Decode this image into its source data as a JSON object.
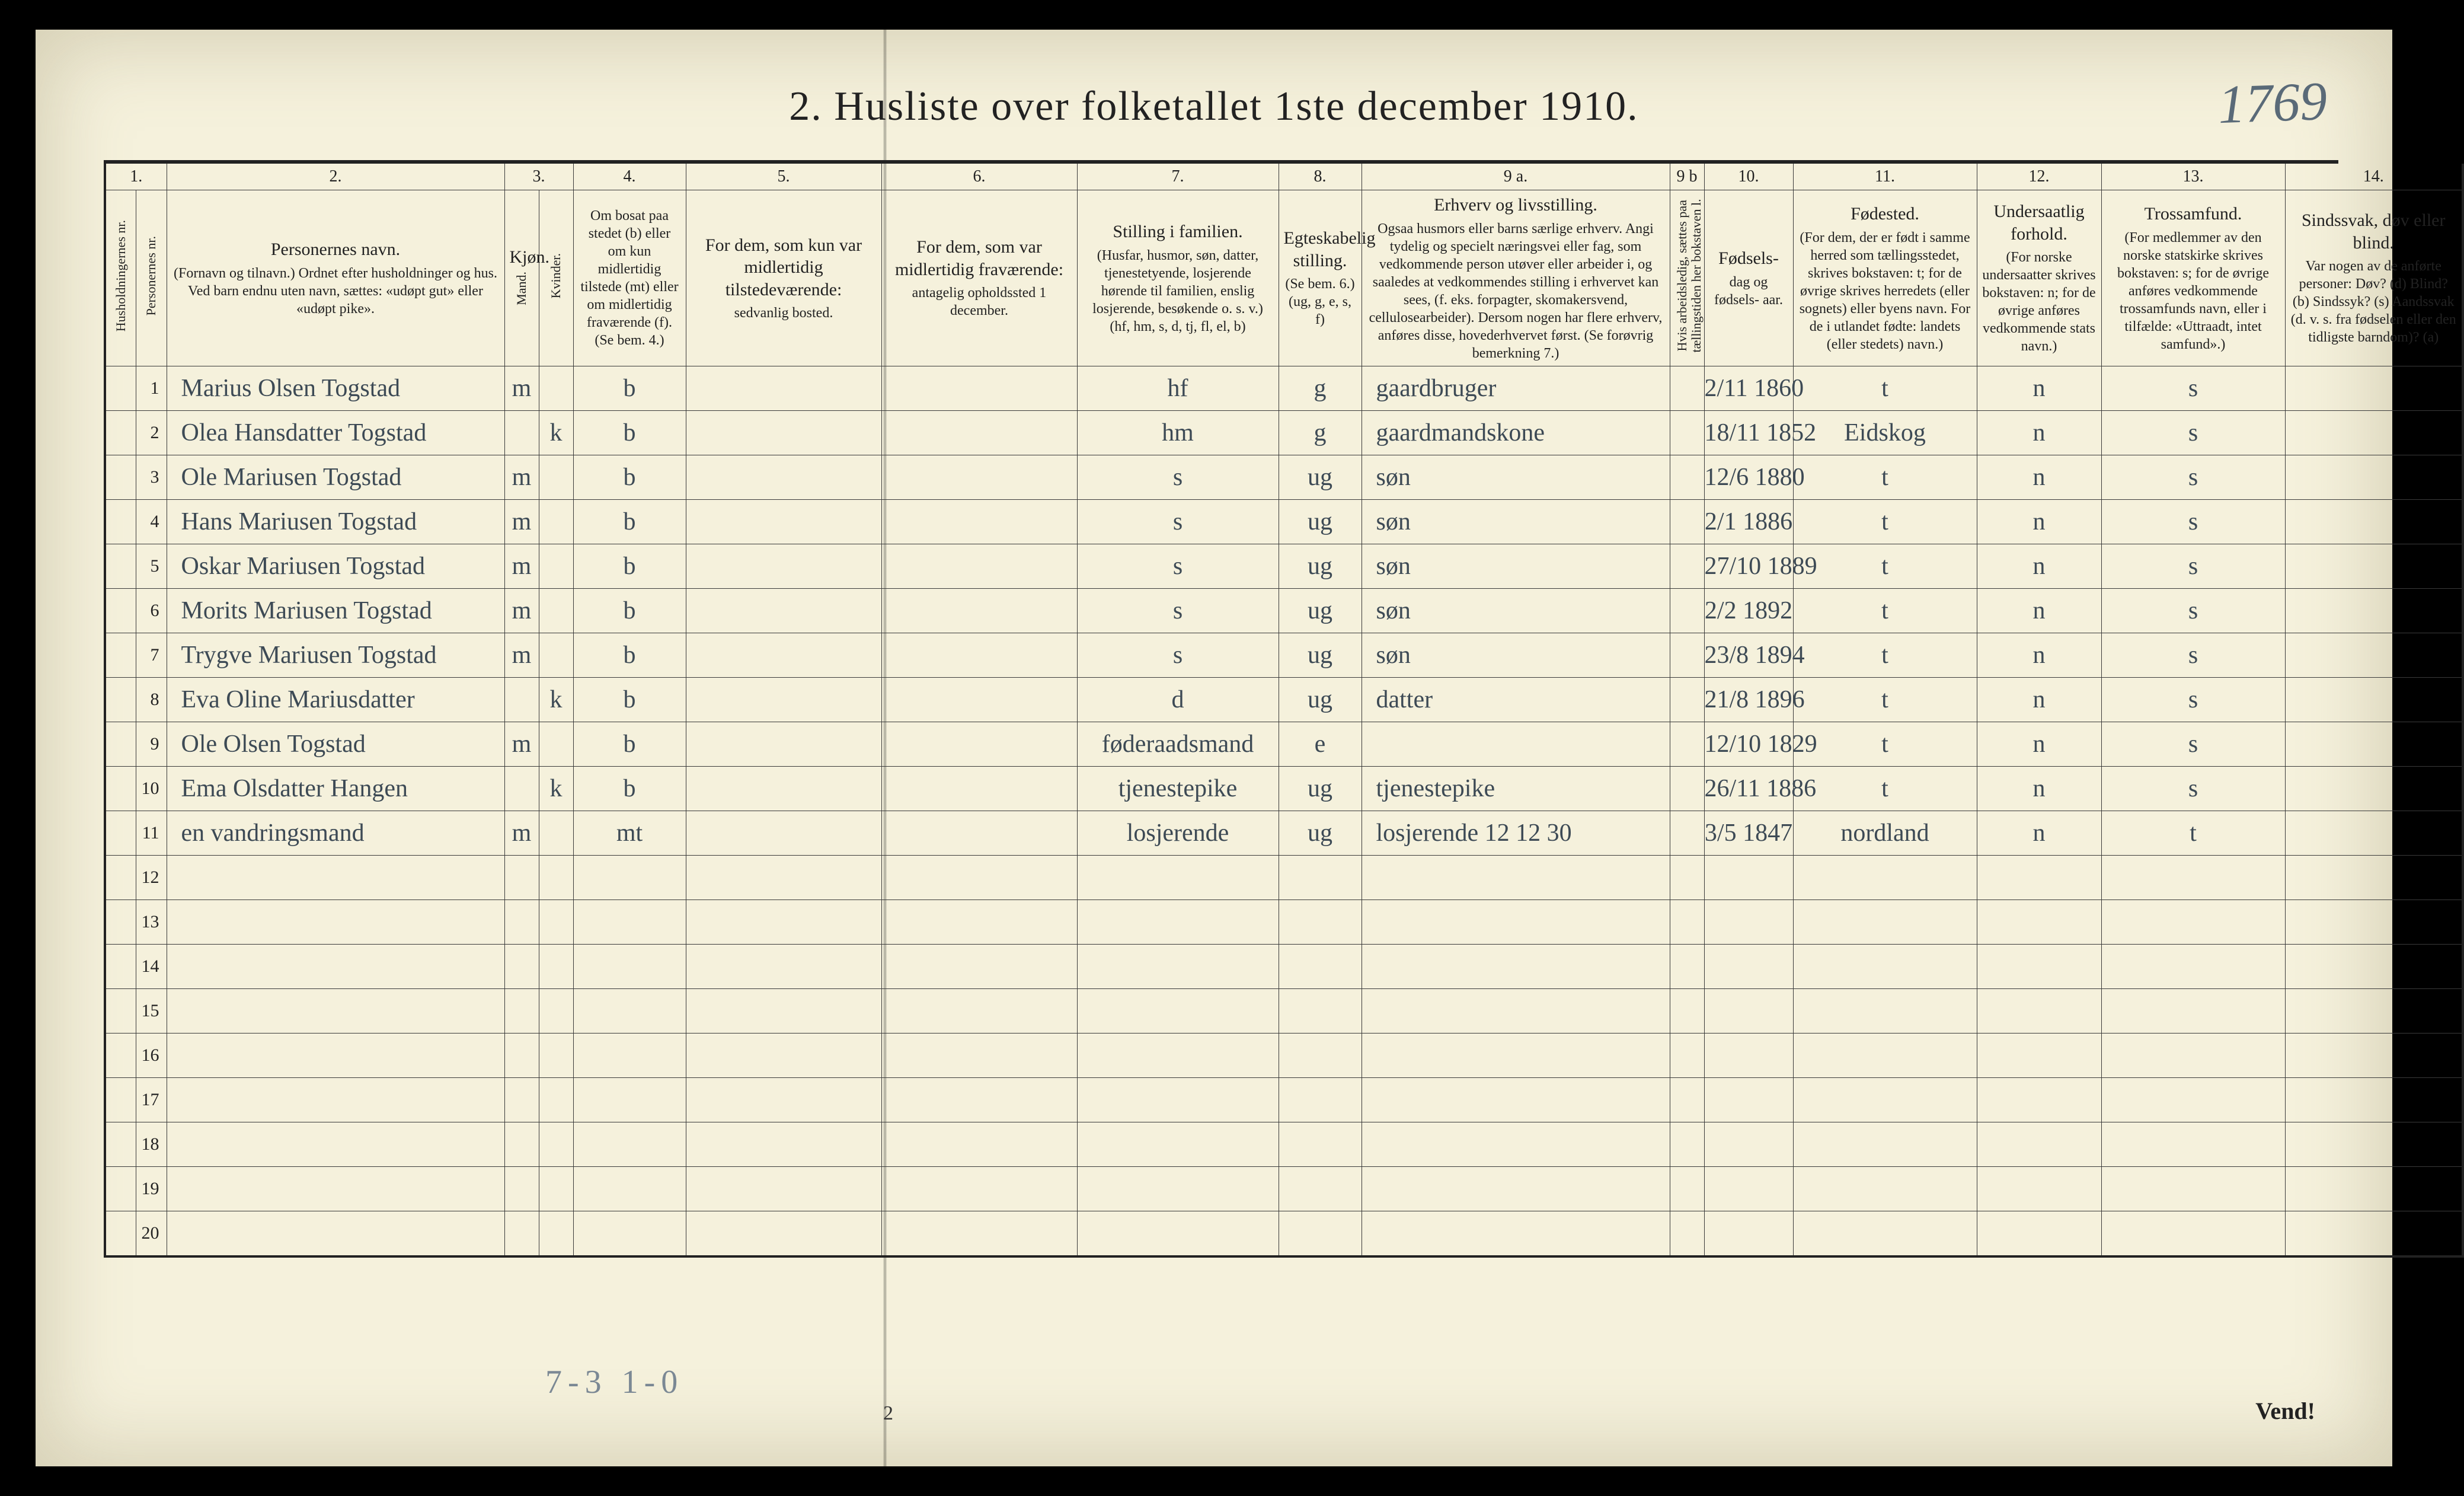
{
  "title": "2.  Husliste over folketallet 1ste december 1910.",
  "corner_note": "1769",
  "footer_page": "2",
  "vend": "Vend!",
  "bottom_tally": "7-3   1-0",
  "col_numbers": [
    "1.",
    "",
    "2.",
    "3.",
    "",
    "4.",
    "5.",
    "6.",
    "7.",
    "8.",
    "9 a.",
    "9 b",
    "10.",
    "11.",
    "12.",
    "13.",
    "14."
  ],
  "headers": {
    "c1": "Husholdningernes nr.",
    "c1b": "Personernes nr.",
    "c2": {
      "big": "Personernes navn.",
      "small": "(Fornavn og tilnavn.)\nOrdnet efter husholdninger og hus.\nVed barn endnu uten navn, sættes: «udøpt gut» eller «udøpt pike»."
    },
    "c3": "Kjøn.",
    "c3a": "Mand.",
    "c3b": "Kvinder.",
    "c4": "Om bosat paa stedet (b) eller om kun midlertidig tilstede (mt) eller om midlertidig fraværende (f). (Se bem. 4.)",
    "c5": {
      "big": "For dem, som kun var midlertidig tilstedeværende:",
      "small": "sedvanlig bosted."
    },
    "c6": {
      "big": "For dem, som var midlertidig fraværende:",
      "small": "antagelig opholdssted 1 december."
    },
    "c7": {
      "big": "Stilling i familien.",
      "small": "(Husfar, husmor, søn, datter, tjenestetyende, losjerende hørende til familien, enslig losjerende, besøkende o. s. v.)\n(hf, hm, s, d, tj, fl, el, b)"
    },
    "c8": {
      "big": "Egteskabelig stilling.",
      "small": "(Se bem. 6.)\n(ug, g, e, s, f)"
    },
    "c9a": {
      "big": "Erhverv og livsstilling.",
      "small": "Ogsaa husmors eller barns særlige erhverv. Angi tydelig og specielt næringsvei eller fag, som vedkommende person utøver eller arbeider i, og saaledes at vedkommendes stilling i erhvervet kan sees, (f. eks. forpagter, skomakersvend, cellulosearbeider). Dersom nogen har flere erhverv, anføres disse, hovederhvervet først. (Se forøvrig bemerkning 7.)"
    },
    "c9b": "Hvis arbeidsledig, sættes paa tællingstiden her bokstaven l.",
    "c10": {
      "big": "Fødsels-",
      "small": "dag\nog\nfødsels-\naar."
    },
    "c11": {
      "big": "Fødested.",
      "small": "(For dem, der er født i samme herred som tællingsstedet, skrives bokstaven: t; for de øvrige skrives herredets (eller sognets) eller byens navn. For de i utlandet fødte: landets (eller stedets) navn.)"
    },
    "c12": {
      "big": "Undersaatlig forhold.",
      "small": "(For norske undersaatter skrives bokstaven: n; for de øvrige anføres vedkommende stats navn.)"
    },
    "c13": {
      "big": "Trossamfund.",
      "small": "(For medlemmer av den norske statskirke skrives bokstaven: s; for de øvrige anføres vedkommende trossamfunds navn, eller i tilfælde: «Uttraadt, intet samfund».)"
    },
    "c14": {
      "big": "Sindssvak, døv eller blind.",
      "small": "Var nogen av de anførte personer:\nDøv?  (d)\nBlind?  (b)\nSindssyk? (s)\nAandssvak (d. v. s. fra fødselen eller den tidligste barndom)? (a)"
    }
  },
  "rows": [
    {
      "n": "1",
      "name": "Marius Olsen Togstad",
      "mk": "m",
      "res": "b",
      "fam": "hf",
      "eg": "g",
      "erh": "gaardbruger",
      "dob": "2/11 1860",
      "fst": "t",
      "und": "n",
      "tro": "s"
    },
    {
      "n": "2",
      "name": "Olea Hansdatter Togstad",
      "mk": "k",
      "res": "b",
      "fam": "hm",
      "eg": "g",
      "erh": "gaardmandskone",
      "dob": "18/11 1852",
      "fst": "Eidskog",
      "und": "n",
      "tro": "s"
    },
    {
      "n": "3",
      "name": "Ole Mariusen Togstad",
      "mk": "m",
      "res": "b",
      "fam": "s",
      "eg": "ug",
      "erh": "søn",
      "dob": "12/6 1880",
      "fst": "t",
      "und": "n",
      "tro": "s"
    },
    {
      "n": "4",
      "name": "Hans Mariusen Togstad",
      "mk": "m",
      "res": "b",
      "fam": "s",
      "eg": "ug",
      "erh": "søn",
      "dob": "2/1 1886",
      "fst": "t",
      "und": "n",
      "tro": "s"
    },
    {
      "n": "5",
      "name": "Oskar Mariusen Togstad",
      "mk": "m",
      "res": "b",
      "fam": "s",
      "eg": "ug",
      "erh": "søn",
      "dob": "27/10 1889",
      "fst": "t",
      "und": "n",
      "tro": "s"
    },
    {
      "n": "6",
      "name": "Morits Mariusen Togstad",
      "mk": "m",
      "res": "b",
      "fam": "s",
      "eg": "ug",
      "erh": "søn",
      "dob": "2/2 1892",
      "fst": "t",
      "und": "n",
      "tro": "s"
    },
    {
      "n": "7",
      "name": "Trygve Mariusen Togstad",
      "mk": "m",
      "res": "b",
      "fam": "s",
      "eg": "ug",
      "erh": "søn",
      "dob": "23/8 1894",
      "fst": "t",
      "und": "n",
      "tro": "s"
    },
    {
      "n": "8",
      "name": "Eva Oline Mariusdatter",
      "mk": "k",
      "res": "b",
      "fam": "d",
      "eg": "ug",
      "erh": "datter",
      "dob": "21/8 1896",
      "fst": "t",
      "und": "n",
      "tro": "s"
    },
    {
      "n": "9",
      "name": "Ole Olsen Togstad",
      "mk": "m",
      "res": "b",
      "fam": "føderaadsmand",
      "eg": "e",
      "erh": "",
      "dob": "12/10 1829",
      "fst": "t",
      "und": "n",
      "tro": "s"
    },
    {
      "n": "10",
      "name": "Ema Olsdatter Hangen",
      "mk": "k",
      "res": "b",
      "fam": "tjenestepike",
      "eg": "ug",
      "erh": "tjenestepike",
      "dob": "26/11 1886",
      "fst": "t",
      "und": "n",
      "tro": "s"
    },
    {
      "n": "11",
      "name": "en vandringsmand",
      "mk": "m",
      "res": "mt",
      "fam": "losjerende",
      "eg": "ug",
      "erh": "losjerende  12 12 30",
      "dob": "3/5 1847",
      "fst": "nordland",
      "und": "n",
      "tro": "t"
    },
    {
      "n": "12"
    },
    {
      "n": "13"
    },
    {
      "n": "14"
    },
    {
      "n": "15"
    },
    {
      "n": "16"
    },
    {
      "n": "17"
    },
    {
      "n": "18"
    },
    {
      "n": "19"
    },
    {
      "n": "20"
    }
  ]
}
